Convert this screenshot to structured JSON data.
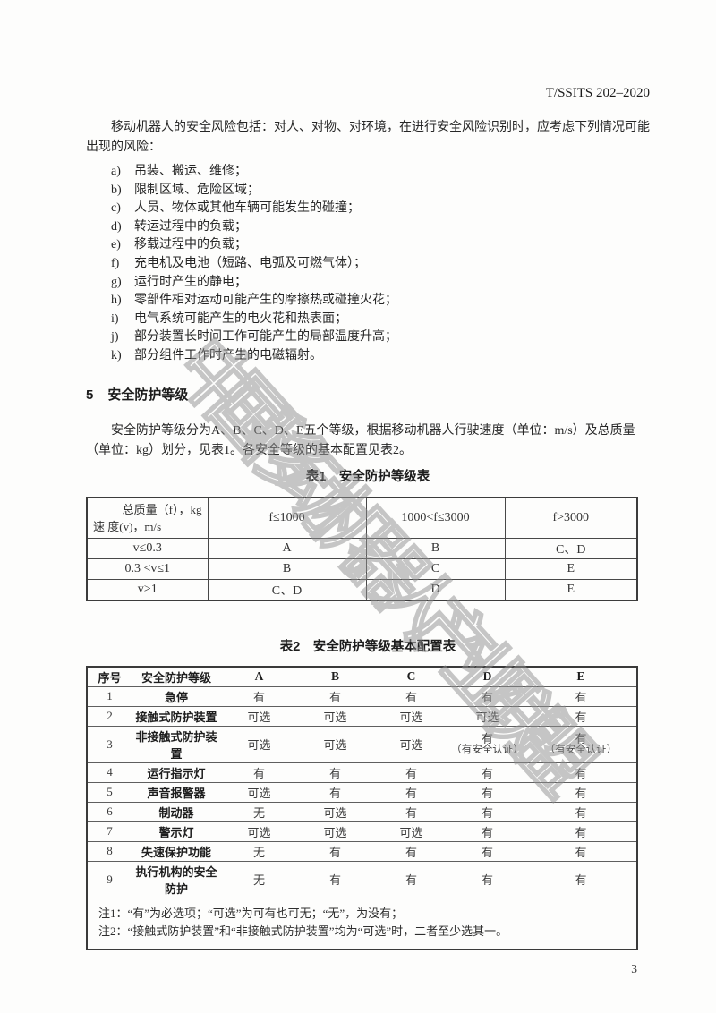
{
  "page": {
    "header_right": "T/SSITS 202–2020",
    "page_number": "3",
    "watermark": "中国移动机器人产业联盟"
  },
  "colors": {
    "text": "#262626",
    "table_border": "#3c3c3c",
    "watermark": "#8f8f8f"
  },
  "intro": {
    "paragraph": "移动机器人的安全风险包括：对人、对物、对环境，在进行安全风险识别时，应考虑下列情况可能出现的风险：",
    "items": [
      {
        "marker": "a)",
        "text": "吊装、搬运、维修；"
      },
      {
        "marker": "b)",
        "text": "限制区域、危险区域；"
      },
      {
        "marker": "c)",
        "text": "人员、物体或其他车辆可能发生的碰撞；"
      },
      {
        "marker": "d)",
        "text": "转运过程中的负载；"
      },
      {
        "marker": "e)",
        "text": "移载过程中的负载；"
      },
      {
        "marker": "f)",
        "text": "充电机及电池（短路、电弧及可燃气体）；"
      },
      {
        "marker": "g)",
        "text": "运行时产生的静电；"
      },
      {
        "marker": "h)",
        "text": "零部件相对运动可能产生的摩擦热或碰撞火花；"
      },
      {
        "marker": "i)",
        "text": "电气系统可能产生的电火花和热表面；"
      },
      {
        "marker": "j)",
        "text": "部分装置长时间工作可能产生的局部温度升高；"
      },
      {
        "marker": "k)",
        "text": "部分组件工作时产生的电磁辐射。"
      }
    ]
  },
  "section5": {
    "number": "5",
    "title": "安全防护等级",
    "paragraph": "安全防护等级分为A、B、C、D、E五个等级，根据移动机器人行驶速度（单位：m/s）及总质量（单位：kg）划分，见表1。各安全等级的基本配置见表2。"
  },
  "table1": {
    "caption": "表1　安全防护等级表",
    "corner_top": "总质量（f），kg",
    "corner_bottom": "速 度(v)，m/s",
    "col_headers": [
      "f≤1000",
      "1000<f≤3000",
      "f>3000"
    ],
    "rows": [
      {
        "label": "v≤0.3",
        "cells": [
          "A",
          "B",
          "C、D"
        ]
      },
      {
        "label": "0.3 <v≤1",
        "cells": [
          "B",
          "C",
          "E"
        ]
      },
      {
        "label": "v>1",
        "cells": [
          "C、D",
          "D",
          "E"
        ]
      }
    ]
  },
  "table2": {
    "caption": "表2　安全防护等级基本配置表",
    "headers": [
      "序号",
      "安全防护等级",
      "A",
      "B",
      "C",
      "D",
      "E"
    ],
    "rows": [
      {
        "no": "1",
        "label": "急停",
        "cells": [
          "有",
          "有",
          "有",
          "有",
          "有"
        ]
      },
      {
        "no": "2",
        "label": "接触式防护装置",
        "cells": [
          "可选",
          "可选",
          "可选",
          "可选",
          "有"
        ]
      },
      {
        "no": "3",
        "label": "非接触式防护装置",
        "cells": [
          "可选",
          "可选",
          "可选",
          [
            "有",
            "（有安全认证）"
          ],
          [
            "有",
            "（有安全认证）"
          ]
        ]
      },
      {
        "no": "4",
        "label": "运行指示灯",
        "cells": [
          "有",
          "有",
          "有",
          "有",
          "有"
        ]
      },
      {
        "no": "5",
        "label": "声音报警器",
        "cells": [
          "可选",
          "有",
          "有",
          "有",
          "有"
        ]
      },
      {
        "no": "6",
        "label": "制动器",
        "cells": [
          "无",
          "可选",
          "有",
          "有",
          "有"
        ]
      },
      {
        "no": "7",
        "label": "警示灯",
        "cells": [
          "可选",
          "可选",
          "可选",
          "有",
          "有"
        ]
      },
      {
        "no": "8",
        "label": "失速保护功能",
        "cells": [
          "无",
          "有",
          "有",
          "有",
          "有"
        ]
      },
      {
        "no": "9",
        "label": "执行机构的安全防护",
        "cells": [
          "无",
          "有",
          "有",
          "有",
          "有"
        ]
      }
    ],
    "notes": [
      "注1：“有”为必选项；“可选”为可有也可无；“无”，为没有；",
      "注2：“接触式防护装置”和“非接触式防护装置”均为“可选”时，二者至少选其一。"
    ]
  }
}
